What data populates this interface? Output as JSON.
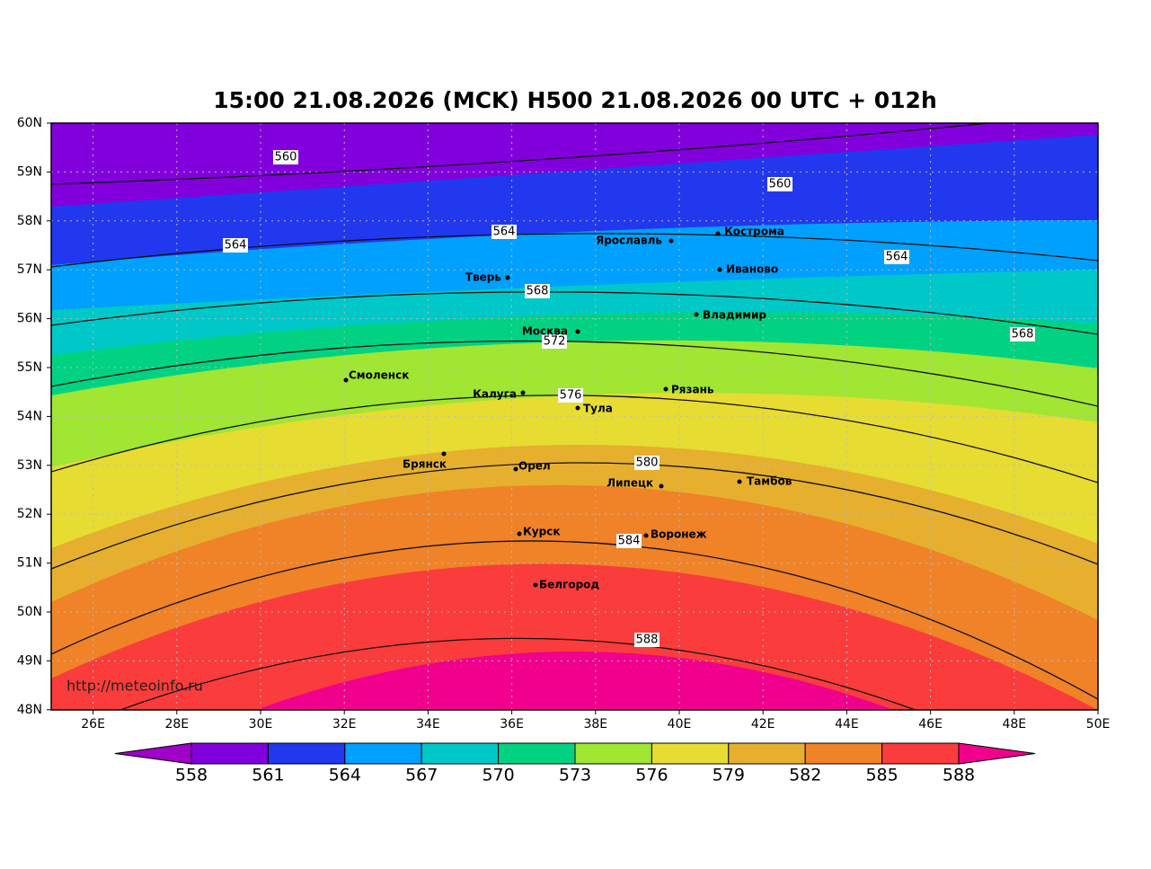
{
  "title": "15:00 21.08.2026 (MCK) H500  21.08.2026 00 UTC + 012h",
  "watermark": "http://meteoinfo.ru",
  "lat_labels": [
    "60N",
    "59N",
    "58N",
    "57N",
    "56N",
    "55N",
    "54N",
    "53N",
    "52N",
    "51N",
    "50N",
    "49N",
    "48N"
  ],
  "lon_labels": [
    "26E",
    "28E",
    "30E",
    "32E",
    "34E",
    "36E",
    "38E",
    "40E",
    "42E",
    "44E",
    "46E",
    "48E",
    "50E"
  ],
  "cities": [
    "Кострома",
    "Ярославль",
    "Иваново",
    "Тверь",
    "Владимир",
    "Москва",
    "Смоленск",
    "Калуга",
    "Рязань",
    "Тула",
    "Брянск",
    "Орел",
    "Липецк",
    "Тамбов",
    "Курск",
    "Воронеж",
    "Белгород"
  ],
  "contour_labels": [
    560,
    560,
    564,
    564,
    564,
    568,
    568,
    572,
    576,
    580,
    584,
    588
  ],
  "colorbar": {
    "ticks": [
      558,
      561,
      564,
      567,
      570,
      573,
      576,
      579,
      582,
      585,
      588
    ],
    "colors": [
      "#a000c8",
      "#8200dc",
      "#2238ee",
      "#00a0ff",
      "#00c8c8",
      "#00d282",
      "#a0e632",
      "#e6dc32",
      "#e6af2d",
      "#f08228",
      "#fa3c3c",
      "#f0008c"
    ]
  }
}
